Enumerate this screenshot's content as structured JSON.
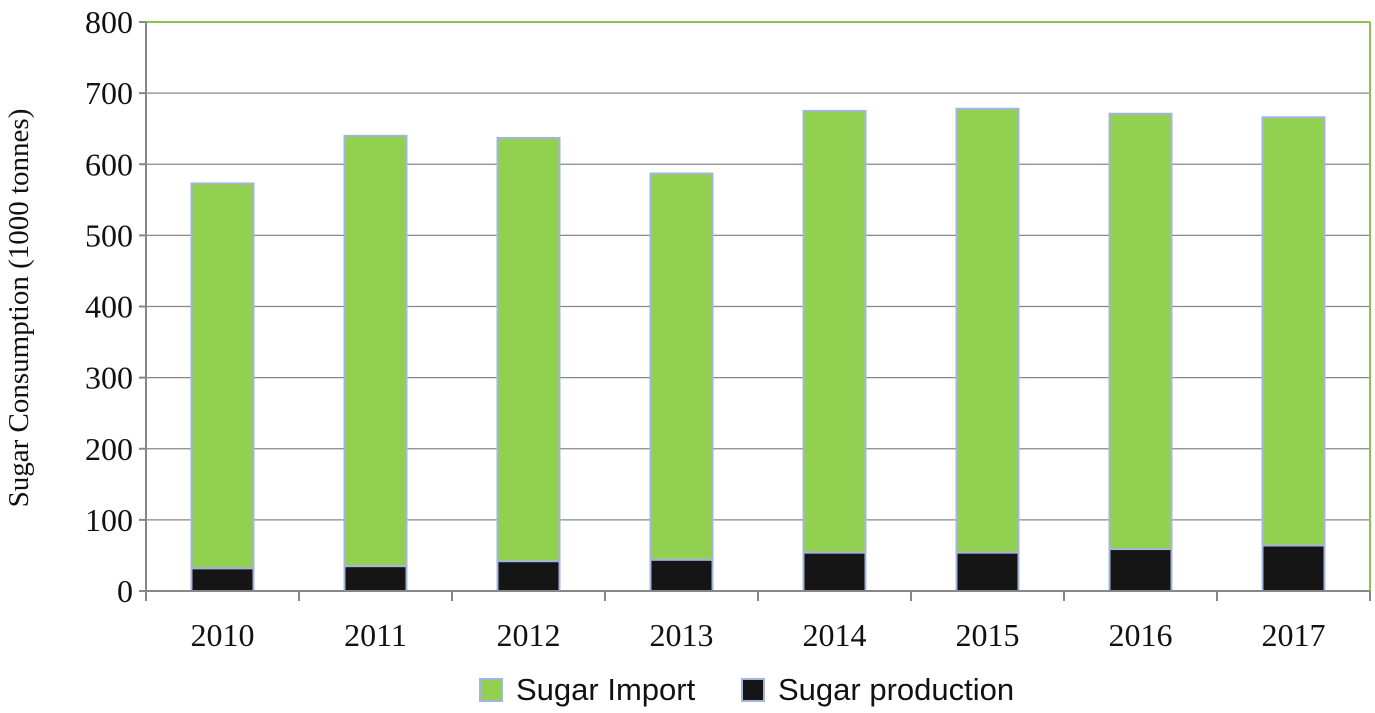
{
  "chart_data": {
    "type": "bar",
    "stacked": true,
    "title": "",
    "xlabel": "",
    "ylabel": "Sugar Consumption (1000 tonnes)",
    "categories": [
      "2010",
      "2011",
      "2012",
      "2013",
      "2014",
      "2015",
      "2016",
      "2017"
    ],
    "series": [
      {
        "name": "Sugar production",
        "color": "#151515",
        "values": [
          32,
          35,
          42,
          44,
          54,
          54,
          59,
          64
        ]
      },
      {
        "name": "Sugar Import",
        "color": "#92d050",
        "values": [
          541,
          605,
          595,
          543,
          621,
          624,
          612,
          602
        ]
      }
    ],
    "ylim": [
      0,
      800
    ],
    "yticks": [
      0,
      100,
      200,
      300,
      400,
      500,
      600,
      700,
      800
    ],
    "grid": true,
    "legend_position": "bottom-center",
    "legend_order": [
      "Sugar Import",
      "Sugar production"
    ],
    "colors": {
      "plot_border": "#8ac24a",
      "gridline": "#878787",
      "axis": "#878787",
      "bar_outline": "#a5b4de"
    }
  }
}
